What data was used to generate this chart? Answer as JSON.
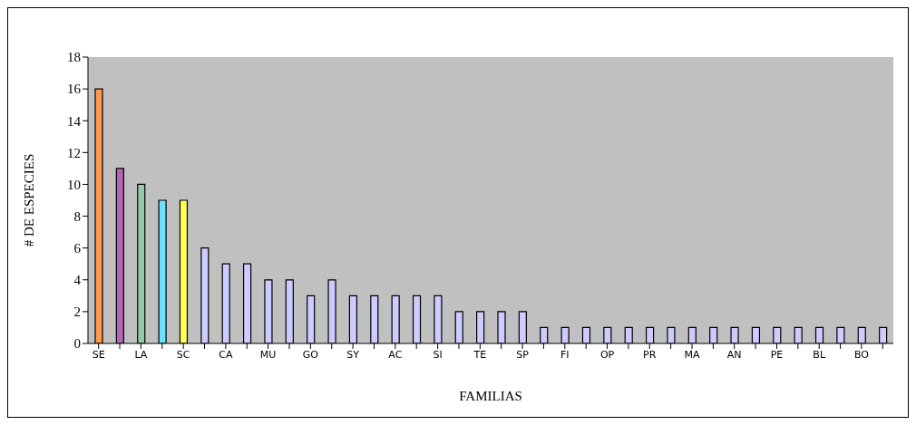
{
  "chart_data": {
    "type": "bar",
    "xlabel": "FAMILIAS",
    "ylabel": "# DE ESPECIES",
    "categories": [
      "SE",
      null,
      "LA",
      null,
      "SC",
      null,
      "CA",
      null,
      "MU",
      null,
      "GO",
      null,
      "SY",
      null,
      "AC",
      null,
      "SI",
      null,
      "TE",
      null,
      "SP",
      null,
      "FI",
      null,
      "OP",
      null,
      "PR",
      null,
      "MA",
      null,
      "AN",
      null,
      "PE",
      null,
      "BL",
      null,
      "BO",
      null
    ],
    "values": [
      16,
      11,
      10,
      9,
      9,
      6,
      5,
      5,
      4,
      4,
      3,
      4,
      3,
      3,
      3,
      3,
      3,
      2,
      2,
      2,
      2,
      1,
      1,
      1,
      1,
      1,
      1,
      1,
      1,
      1,
      1,
      1,
      1,
      1,
      1,
      1,
      1,
      1
    ],
    "colors": [
      "#ff9a4d",
      "#b565b5",
      "#93c9aa",
      "#6ee0ff",
      "#ffff55",
      "#ccccff",
      "#ccccff",
      "#ccccff",
      "#ccccff",
      "#ccccff",
      "#ccccff",
      "#ccccff",
      "#ccccff",
      "#ccccff",
      "#ccccff",
      "#ccccff",
      "#ccccff",
      "#ccccff",
      "#ccccff",
      "#ccccff",
      "#ccccff",
      "#ccccff",
      "#ccccff",
      "#ccccff",
      "#ccccff",
      "#ccccff",
      "#ccccff",
      "#ccccff",
      "#ccccff",
      "#ccccff",
      "#ccccff",
      "#ccccff",
      "#ccccff",
      "#ccccff",
      "#ccccff",
      "#ccccff",
      "#ccccff",
      "#ccccff"
    ],
    "ylim": [
      0,
      18
    ],
    "yticks": [
      0,
      2,
      4,
      6,
      8,
      10,
      12,
      14,
      16,
      18
    ],
    "grid": false,
    "legend": false
  }
}
